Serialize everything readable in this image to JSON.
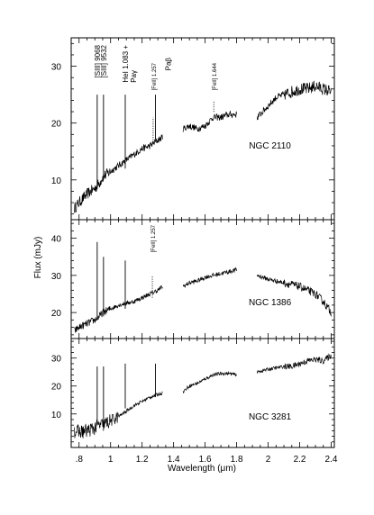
{
  "chart_data": {
    "type": "line",
    "xlabel": "Wavelength (μm)",
    "ylabel": "Flux (mJy)",
    "xlim": [
      0.75,
      2.42
    ],
    "x_ticks": [
      {
        "value": 0.8,
        "label": ".8"
      },
      {
        "value": 1.0,
        "label": "1"
      },
      {
        "value": 1.2,
        "label": "1.2"
      },
      {
        "value": 1.4,
        "label": "1.4"
      },
      {
        "value": 1.6,
        "label": "1.6"
      },
      {
        "value": 1.8,
        "label": "1.8"
      },
      {
        "value": 2.0,
        "label": "2"
      },
      {
        "value": 2.2,
        "label": "2.2"
      },
      {
        "value": 2.4,
        "label": "2.4"
      }
    ],
    "x_minor_step": 0.05,
    "panels": [
      {
        "name": "NGC 2110",
        "ylim": [
          3,
          35
        ],
        "y_ticks": [
          10,
          20,
          30
        ],
        "y_minor_step": 2,
        "segments": [
          {
            "x": [
              0.77,
              0.8,
              0.85,
              0.9,
              0.93,
              0.95,
              1.0,
              1.05,
              1.1,
              1.15,
              1.2,
              1.25,
              1.3,
              1.33
            ],
            "y": [
              5,
              6,
              7.5,
              8.5,
              9.5,
              10.5,
              11.5,
              12.5,
              13.5,
              14.5,
              15.5,
              16,
              17,
              17.5
            ]
          },
          {
            "x": [
              1.46,
              1.5,
              1.55,
              1.6,
              1.65,
              1.7,
              1.75,
              1.8
            ],
            "y": [
              19,
              19.5,
              19,
              19.5,
              21,
              21,
              21.5,
              21.5
            ]
          },
          {
            "x": [
              1.93,
              2.0,
              2.05,
              2.1,
              2.15,
              2.2,
              2.25,
              2.3,
              2.35,
              2.4
            ],
            "y": [
              21,
              23,
              24.5,
              25,
              25.5,
              26,
              26,
              26.5,
              26,
              25.5
            ]
          }
        ],
        "lines": [
          {
            "label": "[SIII] 9068",
            "x": 0.915,
            "y_range": [
              9,
              25
            ]
          },
          {
            "label": "[SIII] 9532",
            "x": 0.955,
            "y_range": [
              10,
              25
            ]
          },
          {
            "label": "HeI 1.083 + Paγ",
            "x": 1.093,
            "y_range": [
              12,
              25
            ]
          },
          {
            "label": "[FeII] 1.257",
            "x": 1.27,
            "y_range": [
              17,
              21
            ],
            "dotted": true
          },
          {
            "label": "Paβ",
            "x": 1.285,
            "y_range": [
              17,
              25
            ]
          },
          {
            "label": "[FeII] 1.644",
            "x": 1.655,
            "y_range": [
              22,
              24
            ],
            "dotted": true
          }
        ]
      },
      {
        "name": "NGC 1386",
        "ylim": [
          13,
          45
        ],
        "y_ticks": [
          20,
          30,
          40
        ],
        "y_minor_step": 2,
        "segments": [
          {
            "x": [
              0.77,
              0.8,
              0.85,
              0.9,
              0.93,
              0.95,
              1.0,
              1.05,
              1.1,
              1.15,
              1.2,
              1.25,
              1.3,
              1.33
            ],
            "y": [
              15,
              16,
              17,
              18,
              19,
              20,
              21,
              22,
              22.5,
              23,
              24,
              25,
              26,
              27
            ]
          },
          {
            "x": [
              1.46,
              1.5,
              1.55,
              1.6,
              1.65,
              1.7,
              1.75,
              1.8
            ],
            "y": [
              27,
              28,
              28.5,
              29.5,
              30,
              30.5,
              31,
              31.5
            ]
          },
          {
            "x": [
              1.93,
              2.0,
              2.05,
              2.1,
              2.15,
              2.2,
              2.25,
              2.3,
              2.35,
              2.4
            ],
            "y": [
              30,
              29,
              28.5,
              28,
              27.5,
              27,
              26,
              25,
              23,
              20
            ]
          }
        ],
        "lines": [
          {
            "label": "",
            "x": 0.915,
            "y_range": [
              18,
              39
            ]
          },
          {
            "label": "",
            "x": 0.955,
            "y_range": [
              19,
              35
            ]
          },
          {
            "label": "",
            "x": 1.093,
            "y_range": [
              21,
              34
            ]
          },
          {
            "label": "[FeII] 1.257",
            "x": 1.265,
            "y_range": [
              24,
              30
            ],
            "dotted": true
          }
        ]
      },
      {
        "name": "NGC 3281",
        "ylim": [
          -2,
          37
        ],
        "y_ticks": [
          10,
          20,
          30
        ],
        "y_minor_step": 2,
        "segments": [
          {
            "x": [
              0.77,
              0.8,
              0.85,
              0.9,
              0.93,
              0.95,
              1.0,
              1.05,
              1.1,
              1.15,
              1.2,
              1.25,
              1.3,
              1.33
            ],
            "y": [
              4,
              3.5,
              4,
              5,
              6,
              6,
              7.5,
              9,
              11,
              13,
              14.5,
              16,
              17,
              17.5
            ]
          },
          {
            "x": [
              1.46,
              1.5,
              1.55,
              1.6,
              1.65,
              1.7,
              1.75,
              1.8
            ],
            "y": [
              18,
              20,
              21,
              22.5,
              24,
              24.5,
              24.5,
              24
            ]
          },
          {
            "x": [
              1.93,
              2.0,
              2.05,
              2.1,
              2.15,
              2.2,
              2.25,
              2.3,
              2.35,
              2.4
            ],
            "y": [
              25,
              26,
              26.5,
              27,
              27,
              28,
              29,
              29.5,
              29,
              31
            ]
          }
        ],
        "lines": [
          {
            "label": "",
            "x": 0.915,
            "y_range": [
              7,
              27
            ]
          },
          {
            "label": "",
            "x": 0.955,
            "y_range": [
              8,
              27
            ]
          },
          {
            "label": "",
            "x": 1.093,
            "y_range": [
              12,
              28
            ]
          },
          {
            "label": "",
            "x": 1.285,
            "y_range": [
              16,
              28
            ]
          }
        ]
      }
    ]
  }
}
